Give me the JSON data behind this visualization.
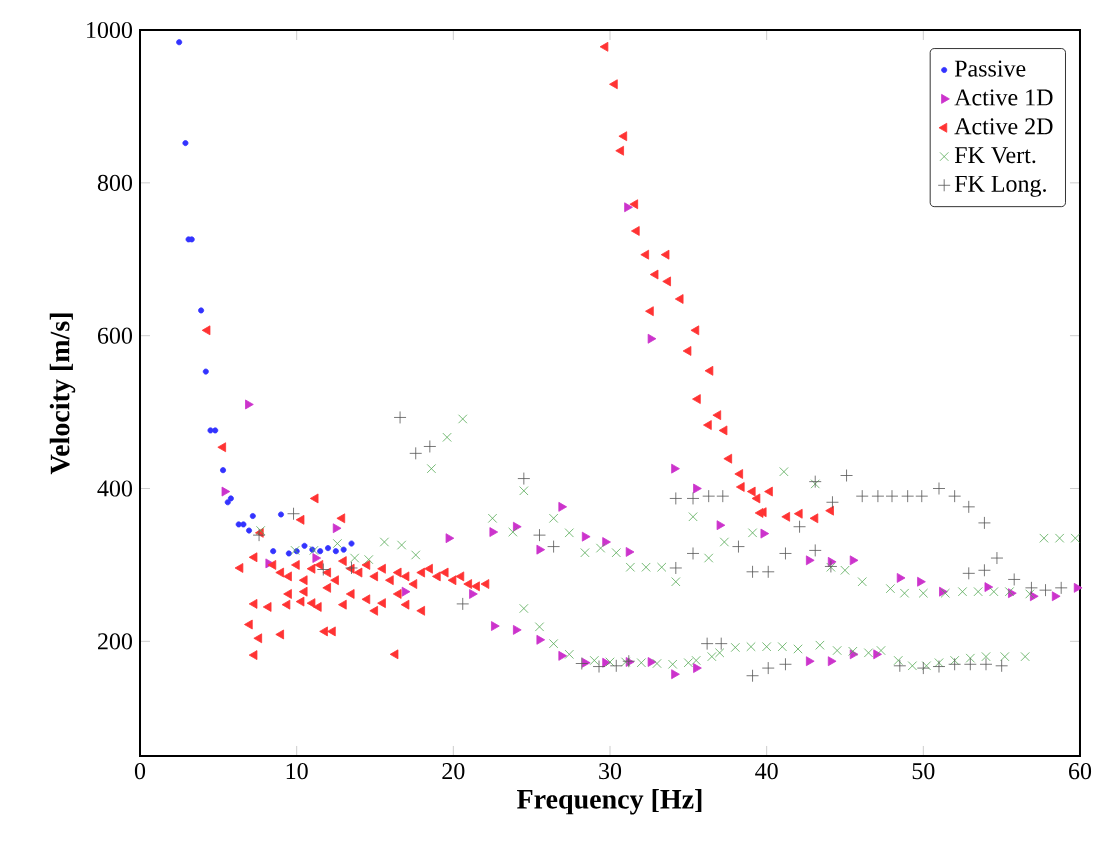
{
  "chart_data": {
    "type": "scatter",
    "xlabel": "Frequency [Hz]",
    "ylabel": "Velocity [m/s]",
    "xlim": [
      0,
      60
    ],
    "xticks": [
      0,
      10,
      20,
      30,
      40,
      50,
      60
    ],
    "ylim": [
      50,
      1000
    ],
    "yticks": [
      200,
      400,
      600,
      800,
      1000
    ],
    "grid": false,
    "legend": "top right",
    "series": [
      {
        "name": "Passive",
        "color": "#3333ff",
        "marker": "circle",
        "x": [
          2.5,
          2.9,
          3.1,
          3.3,
          3.9,
          4.2,
          4.5,
          4.8,
          5.3,
          5.6,
          5.8,
          6.3,
          6.6,
          6.96,
          7.2,
          9.0,
          8.5,
          9.5,
          10,
          10.5,
          11,
          11.5,
          12,
          12.5,
          13,
          13.5
        ],
        "values": [
          984,
          852,
          726,
          726,
          633,
          553,
          476,
          476,
          424,
          382,
          387,
          353,
          353,
          345,
          364,
          366,
          318,
          315,
          318,
          325,
          320,
          318,
          322,
          318,
          320,
          328
        ]
      },
      {
        "name": "Active 1D",
        "color": "#cc33cc",
        "marker": "triangle-right",
        "x": [
          6.9,
          5.4,
          12.5,
          19.7,
          22.5,
          21.2,
          16.9,
          22.6,
          8.2,
          11.2,
          24,
          25.5,
          26.9,
          28.4,
          29.7,
          31.2,
          34.1,
          35.5,
          37.0,
          39.8,
          24,
          25.5,
          26.9,
          28.4,
          29.7,
          31.2,
          32.6,
          34.1,
          35.5,
          31.1,
          32.6,
          42.7,
          44.1,
          45.5,
          48.5,
          49.8,
          51.2,
          54.1,
          55.6,
          57.0,
          58.4,
          59.8,
          42.7,
          44.1,
          45.5,
          47.0
        ],
        "values": [
          510,
          396,
          348,
          335,
          343,
          262,
          265,
          220,
          302,
          309,
          350,
          320,
          376,
          337,
          330,
          317,
          426,
          400,
          352,
          341,
          215,
          202,
          181,
          172,
          172,
          173,
          173,
          157,
          165,
          768,
          596,
          306,
          304,
          306,
          283,
          278,
          265,
          271,
          263,
          259,
          259,
          270,
          174,
          174,
          183,
          183
        ]
      },
      {
        "name": "Active 2D",
        "color": "#ff3333",
        "marker": "triangle-left",
        "x": [
          4.3,
          5.3,
          11.2,
          12.9,
          10.3,
          7.7,
          6.4,
          7.3,
          7.3,
          8.2,
          9.4,
          10.3,
          11.4,
          7.0,
          7.6,
          9.0,
          7.3,
          11.8,
          12.3,
          16.3,
          8.5,
          9,
          9.5,
          10,
          10.5,
          11,
          11.5,
          12,
          12.5,
          13,
          13.5,
          14,
          14.5,
          15,
          15.5,
          16,
          16.5,
          17,
          17.5,
          18,
          18.5,
          19,
          19.5,
          20,
          20.5,
          21,
          21.5,
          22.1,
          9.5,
          10.5,
          12,
          13.5,
          14.5,
          15.5,
          16.5,
          17,
          18,
          11,
          13,
          15,
          29.7,
          30.3,
          30.9,
          30.7,
          31.6,
          31.7,
          32.3,
          33.6,
          32.9,
          33.7,
          34.5,
          32.6,
          35.5,
          35.0,
          36.4,
          35.6,
          36.9,
          36.3,
          37.3,
          37.6,
          38.3,
          38.4,
          39.1,
          39.4,
          40.2,
          39.8,
          39.6,
          41.3,
          42.1,
          43.1,
          44.1
        ],
        "values": [
          607,
          454,
          387,
          361,
          359,
          342,
          296,
          310,
          249,
          245,
          248,
          252,
          245,
          222,
          204,
          209,
          182,
          213,
          213,
          183,
          300,
          290,
          285,
          300,
          280,
          295,
          300,
          290,
          280,
          305,
          295,
          290,
          300,
          285,
          295,
          280,
          290,
          285,
          275,
          290,
          295,
          285,
          290,
          280,
          285,
          275,
          272,
          275,
          262,
          265,
          270,
          262,
          255,
          250,
          262,
          248,
          240,
          250,
          248,
          240,
          978,
          929,
          861,
          842,
          772,
          737,
          706,
          706,
          680,
          671,
          648,
          632,
          607,
          580,
          554,
          517,
          496,
          483,
          476,
          439,
          419,
          402,
          396,
          387,
          396,
          369,
          368,
          363,
          367,
          361,
          371
        ]
      },
      {
        "name": "FK Vert.",
        "color": "#55aa55",
        "marker": "cross",
        "x": [
          7.7,
          9.9,
          11.1,
          12.6,
          13.7,
          14.6,
          15.6,
          16.7,
          17.6,
          18.6,
          19.6,
          20.6,
          22.5,
          23.8,
          24.5,
          26.4,
          27.4,
          28.4,
          29.4,
          30.4,
          31.3,
          32.3,
          33.3,
          34.2,
          35.3,
          36.3,
          37.3,
          39.1,
          41.1,
          43.1,
          44.1,
          45.0,
          46.1,
          47.9,
          48.8,
          50.0,
          51.4,
          52.5,
          53.5,
          54.5,
          55.5,
          56.8,
          57.7,
          58.7,
          59.7,
          24.5,
          25.5,
          26.4,
          27.4,
          29,
          30,
          31,
          32,
          33,
          34,
          35,
          35.5,
          36.5,
          37,
          38,
          39,
          40,
          41,
          42,
          43.4,
          44.5,
          45.5,
          46.5,
          47.3,
          48.4,
          49.3,
          50.2,
          51,
          52,
          53,
          54,
          55.2,
          56.5
        ],
        "values": [
          345,
          319,
          319,
          328,
          309,
          307,
          330,
          326,
          313,
          426,
          467,
          491,
          361,
          343,
          397,
          361,
          342,
          316,
          322,
          316,
          297,
          297,
          297,
          278,
          363,
          309,
          330,
          342,
          422,
          406,
          297,
          293,
          278,
          269,
          263,
          263,
          263,
          265,
          265,
          265,
          265,
          262,
          335,
          335,
          335,
          243,
          219,
          197,
          183,
          175,
          173,
          173,
          172,
          171,
          170,
          172,
          175,
          180,
          185,
          192,
          193,
          193,
          193,
          190,
          195,
          188,
          187,
          185,
          188,
          175,
          168,
          168,
          172,
          175,
          178,
          180,
          180,
          180
        ]
      },
      {
        "name": "FK Long.",
        "color": "#555555",
        "marker": "plus",
        "x": [
          9.8,
          7.6,
          11.7,
          13.5,
          16.6,
          17.6,
          18.5,
          20.6,
          24.5,
          25.5,
          26.4,
          28.2,
          29.3,
          30.4,
          31.2,
          34.2,
          34.2,
          35.3,
          36.3,
          37.2,
          35.3,
          36.2,
          37.1,
          38.2,
          39.1,
          40.1,
          39.1,
          40.1,
          41.2,
          41.2,
          42.1,
          43.1,
          43.1,
          44.1,
          44.2,
          45.1,
          46.1,
          47.1,
          48.0,
          49.0,
          49.9,
          51.0,
          52.0,
          52.9,
          53.9,
          54.7,
          53.9,
          52.9,
          55.8,
          56.9,
          57.8,
          58.8,
          48.5,
          50,
          51,
          52,
          53,
          54,
          55
        ],
        "values": [
          367,
          339,
          294,
          296,
          493,
          446,
          455,
          249,
          413,
          339,
          324,
          171,
          167,
          168,
          174,
          296,
          387,
          387,
          390,
          390,
          315,
          197,
          197,
          324,
          291,
          291,
          155,
          165,
          170,
          315,
          350,
          319,
          409,
          298,
          382,
          417,
          390,
          390,
          390,
          390,
          390,
          400,
          390,
          376,
          355,
          309,
          293,
          289,
          281,
          270,
          267,
          270,
          168,
          165,
          167,
          170,
          170,
          170,
          168
        ]
      }
    ]
  }
}
